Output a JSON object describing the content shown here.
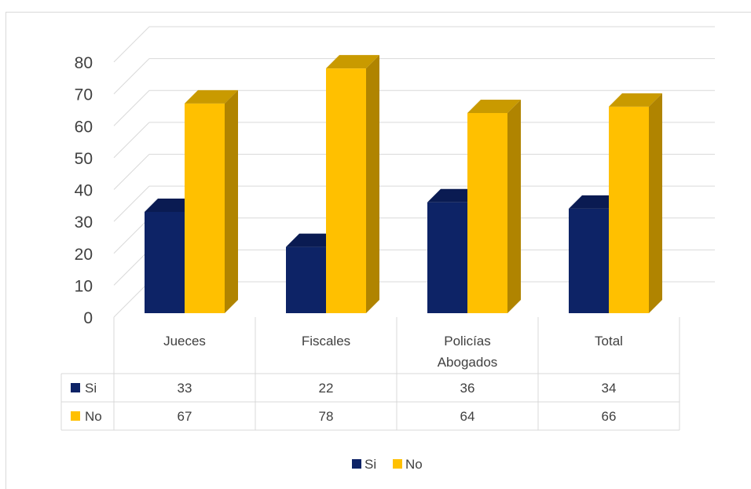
{
  "chart_data": {
    "type": "bar",
    "categories": [
      [
        "Jueces"
      ],
      [
        "Fiscales"
      ],
      [
        "Policías",
        "Abogados"
      ],
      [
        "Total"
      ]
    ],
    "series": [
      {
        "name": "Si",
        "values": [
          33,
          22,
          36,
          34
        ],
        "color": "#0d2366",
        "side_color": "#081740",
        "top_color": "#0a1b52"
      },
      {
        "name": "No",
        "values": [
          67,
          78,
          64,
          66
        ],
        "color": "#ffc000",
        "side_color": "#b08400",
        "top_color": "#c99a00"
      }
    ],
    "yticks": [
      "0",
      "10",
      "20",
      "30",
      "40",
      "50",
      "60",
      "70",
      "80"
    ],
    "ylim": [
      0,
      80
    ],
    "grid": true,
    "data_table": true,
    "legend": "bottom",
    "three_d": true
  }
}
